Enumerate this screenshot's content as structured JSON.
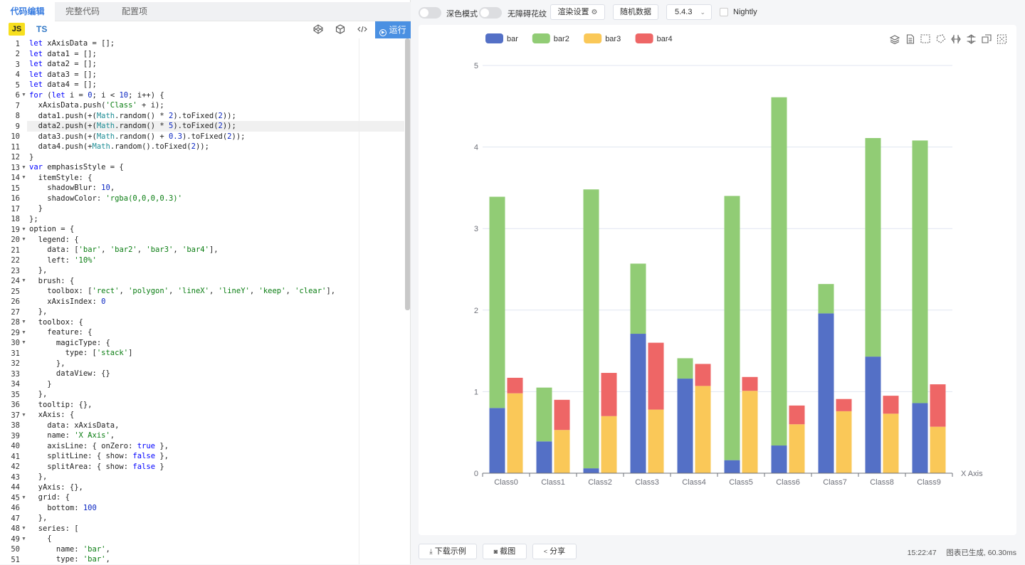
{
  "tabs": [
    "代码编辑",
    "完整代码",
    "配置项"
  ],
  "lang": {
    "js": "JS",
    "ts": "TS",
    "run": "运行"
  },
  "icons": {
    "codepen": "codepen-icon",
    "codesandbox": "codesandbox-icon",
    "embed": "code-embed-icon",
    "run": "play-circle-icon"
  },
  "code_lines": [
    "let xAxisData = [];",
    "let data1 = [];",
    "let data2 = [];",
    "let data3 = [];",
    "let data4 = [];",
    "for (let i = 0; i < 10; i++) {",
    "  xAxisData.push('Class' + i);",
    "  data1.push(+(Math.random() * 2).toFixed(2));",
    "  data2.push(+(Math.random() * 5).toFixed(2));",
    "  data3.push(+(Math.random() + 0.3).toFixed(2));",
    "  data4.push(+Math.random().toFixed(2));",
    "}",
    "var emphasisStyle = {",
    "  itemStyle: {",
    "    shadowBlur: 10,",
    "    shadowColor: 'rgba(0,0,0,0.3)'",
    "  }",
    "};",
    "option = {",
    "  legend: {",
    "    data: ['bar', 'bar2', 'bar3', 'bar4'],",
    "    left: '10%'",
    "  },",
    "  brush: {",
    "    toolbox: ['rect', 'polygon', 'lineX', 'lineY', 'keep', 'clear'],",
    "    xAxisIndex: 0",
    "  },",
    "  toolbox: {",
    "    feature: {",
    "      magicType: {",
    "        type: ['stack']",
    "      },",
    "      dataView: {}",
    "    }",
    "  },",
    "  tooltip: {},",
    "  xAxis: {",
    "    data: xAxisData,",
    "    name: 'X Axis',",
    "    axisLine: { onZero: true },",
    "    splitLine: { show: false },",
    "    splitArea: { show: false }",
    "  },",
    "  yAxis: {},",
    "  grid: {",
    "    bottom: 100",
    "  },",
    "  series: [",
    "    {",
    "      name: 'bar',",
    "      type: 'bar',"
  ],
  "fold_lines": [
    6,
    13,
    14,
    19,
    20,
    24,
    28,
    29,
    30,
    37,
    45,
    48,
    49
  ],
  "highlight_line": 9,
  "topbar": {
    "dark_mode": "深色模式",
    "accessible": "无障碍花纹",
    "render_settings": "渲染设置",
    "random_data": "随机数据",
    "version": "5.4.3",
    "nightly": "Nightly"
  },
  "bottombar": {
    "download": "下载示例",
    "screenshot": "截图",
    "share": "分享",
    "time": "15:22:47",
    "status": "图表已生成, 60.30ms"
  },
  "colors": {
    "bar": "#5470c6",
    "bar2": "#91cc75",
    "bar3": "#fac858",
    "bar4": "#ee6666",
    "accent": "#4a90e2"
  },
  "toolbox_icons": [
    "stack-icon",
    "data-view-icon",
    "brush-rect-icon",
    "brush-polygon-icon",
    "brush-linex-icon",
    "brush-liney-icon",
    "brush-keep-icon",
    "brush-clear-icon"
  ],
  "chart_data": {
    "type": "bar",
    "categories": [
      "Class0",
      "Class1",
      "Class2",
      "Class3",
      "Class4",
      "Class5",
      "Class6",
      "Class7",
      "Class8",
      "Class9"
    ],
    "series": [
      {
        "name": "bar",
        "stack": "one",
        "values": [
          0.8,
          0.39,
          0.06,
          1.71,
          1.16,
          0.16,
          0.34,
          1.96,
          1.43,
          0.86
        ]
      },
      {
        "name": "bar2",
        "stack": "one",
        "values": [
          2.59,
          0.66,
          3.42,
          0.86,
          0.25,
          3.24,
          4.27,
          0.36,
          2.68,
          3.22
        ]
      },
      {
        "name": "bar3",
        "stack": "two",
        "values": [
          0.98,
          0.53,
          0.7,
          0.78,
          1.07,
          1.01,
          0.6,
          0.76,
          0.73,
          0.57
        ]
      },
      {
        "name": "bar4",
        "stack": "two",
        "values": [
          0.19,
          0.37,
          0.53,
          0.82,
          0.27,
          0.17,
          0.23,
          0.15,
          0.22,
          0.52
        ]
      }
    ],
    "xlabel": "X Axis",
    "ylim": [
      0,
      5
    ],
    "yticks": [
      0,
      1,
      2,
      3,
      4,
      5
    ],
    "legend": [
      "bar",
      "bar2",
      "bar3",
      "bar4"
    ],
    "legend_position": "top-left"
  }
}
